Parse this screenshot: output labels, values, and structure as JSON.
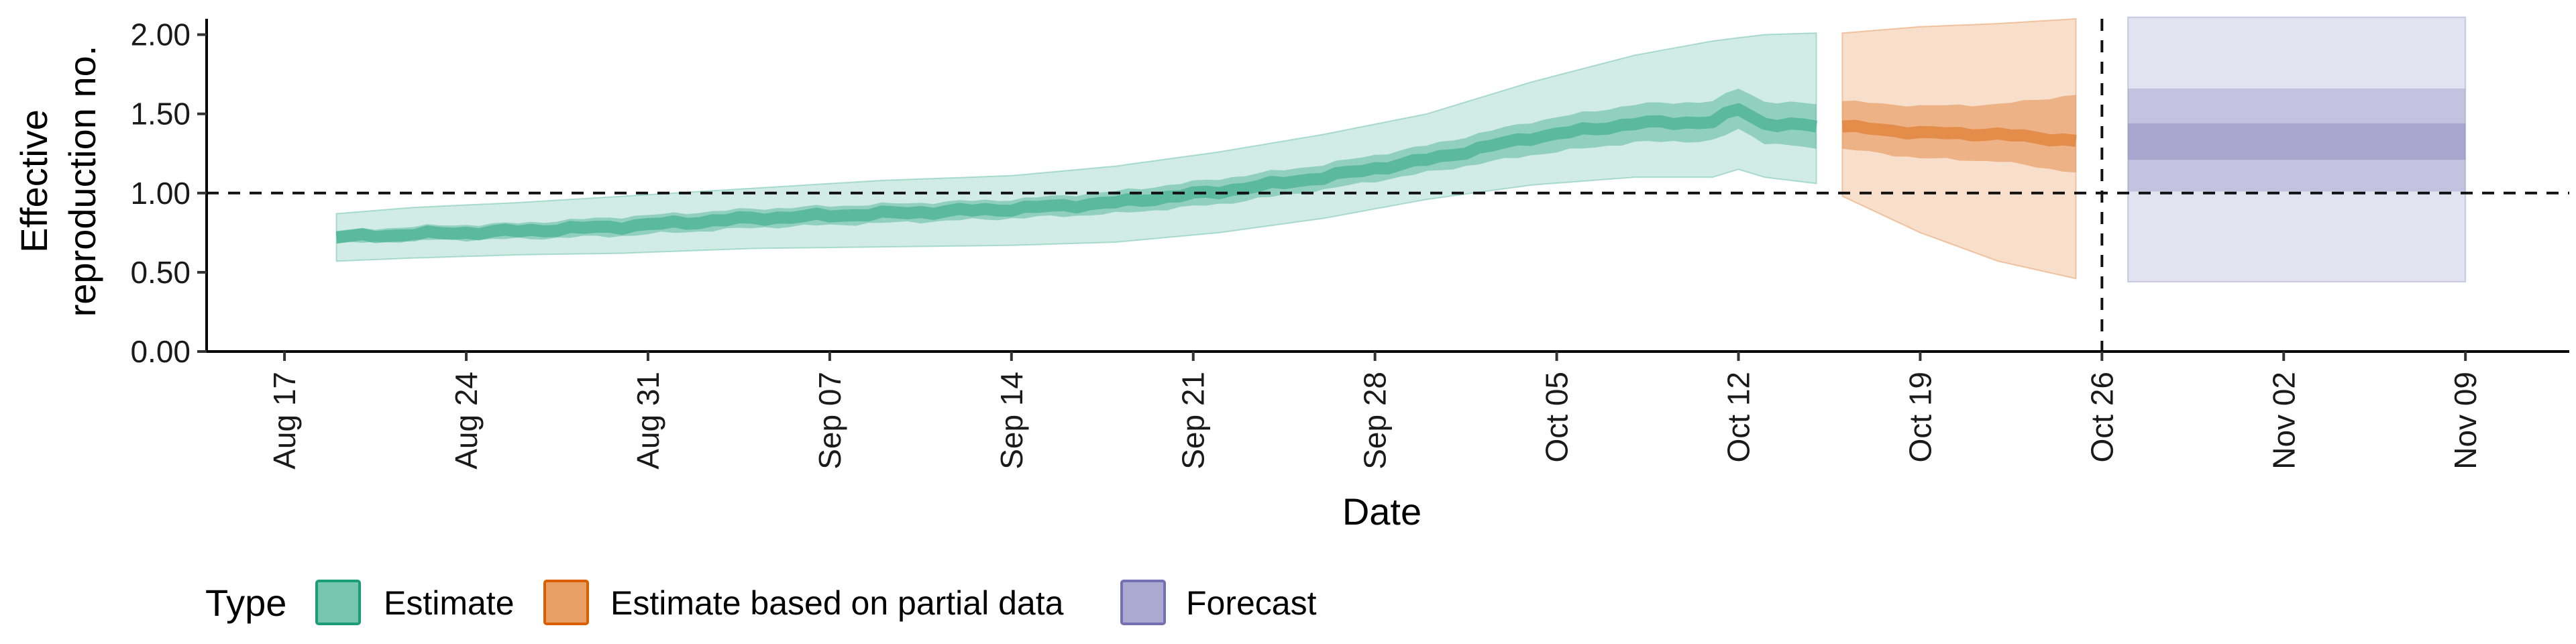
{
  "chart_data": {
    "type": "area",
    "xlabel": "Date",
    "ylabel_lines": [
      "Effective",
      "reproduction no."
    ],
    "ylim": [
      0,
      2.1
    ],
    "yticks": [
      0,
      0.5,
      1.0,
      1.5,
      2.0
    ],
    "ytick_labels": [
      "0.00",
      "0.50",
      "1.00",
      "1.50",
      "2.00"
    ],
    "xlim": [
      "2020-08-14",
      "2020-11-13"
    ],
    "xticks": [
      "2020-08-17",
      "2020-08-24",
      "2020-08-31",
      "2020-09-07",
      "2020-09-14",
      "2020-09-21",
      "2020-09-28",
      "2020-10-05",
      "2020-10-12",
      "2020-10-19",
      "2020-10-26",
      "2020-11-02",
      "2020-11-09"
    ],
    "xtick_labels": [
      "Aug 17",
      "Aug 24",
      "Aug 31",
      "Sep 07",
      "Sep 14",
      "Sep 21",
      "Sep 28",
      "Oct 05",
      "Oct 12",
      "Oct 19",
      "Oct 26",
      "Nov 02",
      "Nov 09"
    ],
    "reference_hline": 1.0,
    "reference_vline": "2020-10-26",
    "colors": {
      "Estimate": "#1b9e77",
      "Estimate based on partial data": "#d95f02",
      "Forecast": "#7570b3"
    },
    "series": [
      {
        "name": "Estimate",
        "points": [
          {
            "date": "2020-08-19",
            "median": 0.72,
            "lower_50": 0.68,
            "upper_50": 0.76,
            "lower_90": 0.57,
            "upper_90": 0.87
          },
          {
            "date": "2020-08-22",
            "median": 0.74,
            "lower_50": 0.7,
            "upper_50": 0.79,
            "lower_90": 0.59,
            "upper_90": 0.91
          },
          {
            "date": "2020-08-26",
            "median": 0.76,
            "lower_50": 0.71,
            "upper_50": 0.81,
            "lower_90": 0.61,
            "upper_90": 0.94
          },
          {
            "date": "2020-08-30",
            "median": 0.79,
            "lower_50": 0.73,
            "upper_50": 0.85,
            "lower_90": 0.62,
            "upper_90": 0.98
          },
          {
            "date": "2020-09-04",
            "median": 0.84,
            "lower_50": 0.78,
            "upper_50": 0.9,
            "lower_90": 0.65,
            "upper_90": 1.03
          },
          {
            "date": "2020-09-09",
            "median": 0.87,
            "lower_50": 0.81,
            "upper_50": 0.93,
            "lower_90": 0.66,
            "upper_90": 1.08
          },
          {
            "date": "2020-09-14",
            "median": 0.9,
            "lower_50": 0.84,
            "upper_50": 0.96,
            "lower_90": 0.67,
            "upper_90": 1.11
          },
          {
            "date": "2020-09-18",
            "median": 0.94,
            "lower_50": 0.87,
            "upper_50": 1.01,
            "lower_90": 0.69,
            "upper_90": 1.17
          },
          {
            "date": "2020-09-22",
            "median": 1.01,
            "lower_50": 0.93,
            "upper_50": 1.09,
            "lower_90": 0.75,
            "upper_90": 1.26
          },
          {
            "date": "2020-09-26",
            "median": 1.1,
            "lower_50": 1.02,
            "upper_50": 1.18,
            "lower_90": 0.84,
            "upper_90": 1.37
          },
          {
            "date": "2020-09-30",
            "median": 1.21,
            "lower_50": 1.13,
            "upper_50": 1.3,
            "lower_90": 0.96,
            "upper_90": 1.5
          },
          {
            "date": "2020-10-04",
            "median": 1.35,
            "lower_50": 1.24,
            "upper_50": 1.45,
            "lower_90": 1.05,
            "upper_90": 1.7
          },
          {
            "date": "2020-10-08",
            "median": 1.44,
            "lower_50": 1.32,
            "upper_50": 1.56,
            "lower_90": 1.1,
            "upper_90": 1.87
          },
          {
            "date": "2020-10-11",
            "median": 1.45,
            "lower_50": 1.33,
            "upper_50": 1.58,
            "lower_90": 1.1,
            "upper_90": 1.96
          },
          {
            "date": "2020-10-12",
            "median": 1.53,
            "lower_50": 1.4,
            "upper_50": 1.66,
            "lower_90": 1.15,
            "upper_90": 1.98
          },
          {
            "date": "2020-10-13",
            "median": 1.44,
            "lower_50": 1.32,
            "upper_50": 1.58,
            "lower_90": 1.1,
            "upper_90": 2.0
          },
          {
            "date": "2020-10-15",
            "median": 1.42,
            "lower_50": 1.28,
            "upper_50": 1.56,
            "lower_90": 1.06,
            "upper_90": 2.01
          }
        ]
      },
      {
        "name": "Estimate based on partial data",
        "points": [
          {
            "date": "2020-10-16",
            "median": 1.42,
            "lower_50": 1.28,
            "upper_50": 1.58,
            "lower_90": 0.98,
            "upper_90": 2.01
          },
          {
            "date": "2020-10-19",
            "median": 1.38,
            "lower_50": 1.22,
            "upper_50": 1.55,
            "lower_90": 0.75,
            "upper_90": 2.05
          },
          {
            "date": "2020-10-22",
            "median": 1.37,
            "lower_50": 1.2,
            "upper_50": 1.56,
            "lower_90": 0.57,
            "upper_90": 2.07
          },
          {
            "date": "2020-10-25",
            "median": 1.33,
            "lower_50": 1.13,
            "upper_50": 1.62,
            "lower_90": 0.46,
            "upper_90": 2.1
          }
        ]
      },
      {
        "name": "Forecast",
        "points": [
          {
            "date": "2020-10-27",
            "median": 1.33,
            "lower_50": 1.21,
            "upper_50": 1.44,
            "lower_90": 0.44,
            "upper_90": 2.11
          },
          {
            "date": "2020-11-09",
            "median": 1.33,
            "lower_50": 1.21,
            "upper_50": 1.44,
            "lower_90": 0.44,
            "upper_90": 2.11
          }
        ],
        "outer_50": [
          1.01,
          1.66
        ]
      }
    ],
    "legend": {
      "title": "Type",
      "position": "bottom-left",
      "entries": [
        "Estimate",
        "Estimate based on partial data",
        "Forecast"
      ]
    }
  }
}
